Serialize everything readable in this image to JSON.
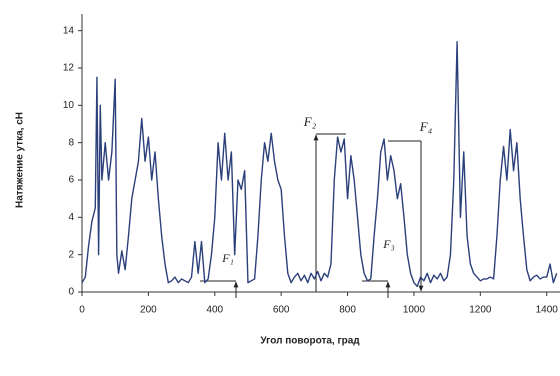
{
  "chart_data": {
    "type": "line",
    "x_label": "Угол поворота, град",
    "y_label": "Натяжение утка, сН",
    "x": [
      0,
      10,
      20,
      30,
      40,
      45,
      50,
      55,
      60,
      70,
      80,
      90,
      100,
      105,
      110,
      120,
      130,
      140,
      150,
      160,
      170,
      180,
      190,
      200,
      210,
      220,
      230,
      240,
      250,
      260,
      270,
      280,
      290,
      300,
      310,
      320,
      330,
      340,
      350,
      360,
      370,
      380,
      390,
      400,
      410,
      420,
      430,
      440,
      450,
      460,
      470,
      480,
      490,
      500,
      510,
      520,
      530,
      540,
      550,
      560,
      570,
      580,
      590,
      600,
      610,
      620,
      630,
      640,
      650,
      660,
      670,
      680,
      690,
      700,
      710,
      720,
      730,
      740,
      750,
      760,
      770,
      780,
      790,
      800,
      810,
      820,
      830,
      840,
      850,
      860,
      870,
      880,
      890,
      900,
      910,
      920,
      930,
      940,
      950,
      960,
      970,
      980,
      990,
      1000,
      1010,
      1020,
      1030,
      1040,
      1050,
      1060,
      1070,
      1080,
      1090,
      1100,
      1110,
      1120,
      1130,
      1140,
      1150,
      1160,
      1170,
      1180,
      1190,
      1200,
      1210,
      1220,
      1230,
      1240,
      1250,
      1260,
      1270,
      1280,
      1290,
      1300,
      1310,
      1320,
      1330,
      1340,
      1350,
      1360,
      1370,
      1380,
      1390,
      1400,
      1410,
      1420,
      1430
    ],
    "series": [
      {
        "name": "Натяжение",
        "color": "#2b3f7a",
        "values": [
          0.5,
          0.8,
          2.5,
          3.8,
          4.5,
          11.5,
          2,
          10,
          6,
          8,
          6,
          7.5,
          11.4,
          2,
          1,
          2.2,
          1.2,
          3,
          5,
          6,
          7,
          9.3,
          7,
          8.3,
          6,
          7.5,
          5,
          3,
          1.5,
          0.5,
          0.6,
          0.8,
          0.5,
          0.7,
          0.6,
          0.5,
          0.8,
          2.7,
          1,
          2.7,
          0.5,
          0.7,
          2,
          4,
          8,
          6,
          8.5,
          6,
          7.5,
          2,
          6,
          5.5,
          6.5,
          0.5,
          0.6,
          0.7,
          3,
          6,
          8,
          7,
          8.5,
          7,
          6,
          5.5,
          3,
          1,
          0.5,
          0.8,
          1,
          0.6,
          0.9,
          0.5,
          1,
          0.7,
          1.1,
          0.6,
          1,
          0.8,
          1.5,
          6,
          8.3,
          7.5,
          8.2,
          5,
          7.3,
          6,
          4,
          2,
          1,
          0.6,
          0.7,
          3,
          5,
          7.5,
          8.2,
          6,
          7.3,
          6.5,
          5,
          5.8,
          4,
          2,
          1,
          0.5,
          0.3,
          0.8,
          0.6,
          1,
          0.5,
          0.9,
          0.7,
          1,
          0.6,
          0.8,
          2,
          6,
          13.4,
          4,
          7.5,
          3,
          1.5,
          1,
          0.8,
          0.6,
          0.7,
          0.7,
          0.8,
          0.7,
          3,
          6,
          7.8,
          6,
          8.7,
          6.5,
          8,
          5,
          3,
          1.2,
          0.6,
          0.8,
          0.9,
          0.7,
          0.8,
          0.8,
          1.5,
          0.5,
          1
        ]
      }
    ],
    "xlim": [
      0,
      1440
    ],
    "xticks": [
      0,
      200,
      400,
      600,
      800,
      1000,
      1200,
      1400
    ],
    "ylim": [
      0,
      15
    ],
    "yticks": [
      0,
      2,
      4,
      6,
      8,
      10,
      12,
      14
    ],
    "annotations": [
      {
        "text": "F₁"
      },
      {
        "text": "F₂"
      },
      {
        "text": "F₃"
      },
      {
        "text": "F₄"
      }
    ]
  }
}
